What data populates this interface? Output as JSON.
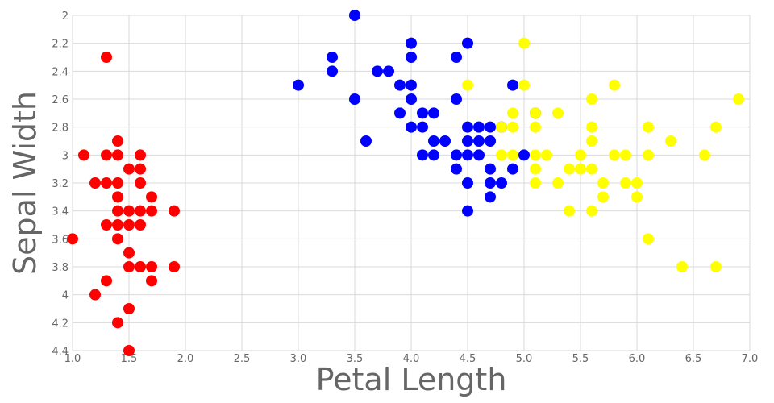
{
  "chart_data": {
    "type": "scatter",
    "title": "",
    "xlabel": "Petal Length",
    "ylabel": "Sepal Width",
    "xlim": [
      1.0,
      7.0
    ],
    "ylim": [
      2,
      4.4
    ],
    "y_inverted": true,
    "grid": true,
    "legend": "none",
    "xticks": [
      "1.0",
      "1.5",
      "2.0",
      "2.5",
      "3.0",
      "3.5",
      "4.0",
      "4.5",
      "5.0",
      "5.5",
      "6.0",
      "6.5",
      "7.0"
    ],
    "yticks": [
      "2",
      "2.2",
      "2.4",
      "2.6",
      "2.8",
      "3",
      "3.2",
      "3.4",
      "3.6",
      "3.8",
      "4",
      "4.2",
      "4.4"
    ],
    "series": [
      {
        "color": "#ff0000",
        "points": [
          [
            1.0,
            3.6
          ],
          [
            1.1,
            3.0
          ],
          [
            1.2,
            3.2
          ],
          [
            1.2,
            4.0
          ],
          [
            1.3,
            2.3
          ],
          [
            1.3,
            3.0
          ],
          [
            1.3,
            3.2
          ],
          [
            1.3,
            3.5
          ],
          [
            1.3,
            3.9
          ],
          [
            1.4,
            2.9
          ],
          [
            1.4,
            3.0
          ],
          [
            1.4,
            3.2
          ],
          [
            1.4,
            3.3
          ],
          [
            1.4,
            3.4
          ],
          [
            1.4,
            3.5
          ],
          [
            1.4,
            3.6
          ],
          [
            1.4,
            4.2
          ],
          [
            1.5,
            3.1
          ],
          [
            1.5,
            3.4
          ],
          [
            1.5,
            3.5
          ],
          [
            1.5,
            3.7
          ],
          [
            1.5,
            3.8
          ],
          [
            1.5,
            4.1
          ],
          [
            1.5,
            4.4
          ],
          [
            1.6,
            3.0
          ],
          [
            1.6,
            3.1
          ],
          [
            1.6,
            3.2
          ],
          [
            1.6,
            3.4
          ],
          [
            1.6,
            3.5
          ],
          [
            1.6,
            3.8
          ],
          [
            1.7,
            3.3
          ],
          [
            1.7,
            3.4
          ],
          [
            1.7,
            3.8
          ],
          [
            1.7,
            3.9
          ],
          [
            1.9,
            3.4
          ],
          [
            1.9,
            3.8
          ]
        ]
      },
      {
        "color": "#0000ff",
        "points": [
          [
            3.0,
            2.5
          ],
          [
            3.3,
            2.3
          ],
          [
            3.3,
            2.4
          ],
          [
            3.5,
            2.0
          ],
          [
            3.5,
            2.6
          ],
          [
            3.6,
            2.9
          ],
          [
            3.7,
            2.4
          ],
          [
            3.8,
            2.4
          ],
          [
            3.9,
            2.5
          ],
          [
            3.9,
            2.7
          ],
          [
            4.0,
            2.2
          ],
          [
            4.0,
            2.3
          ],
          [
            4.0,
            2.5
          ],
          [
            4.0,
            2.6
          ],
          [
            4.0,
            2.8
          ],
          [
            4.1,
            2.7
          ],
          [
            4.1,
            2.8
          ],
          [
            4.1,
            3.0
          ],
          [
            4.2,
            2.7
          ],
          [
            4.2,
            2.9
          ],
          [
            4.2,
            3.0
          ],
          [
            4.3,
            2.9
          ],
          [
            4.4,
            2.3
          ],
          [
            4.4,
            2.6
          ],
          [
            4.4,
            3.0
          ],
          [
            4.4,
            3.1
          ],
          [
            4.5,
            2.2
          ],
          [
            4.5,
            2.8
          ],
          [
            4.5,
            2.9
          ],
          [
            4.5,
            3.0
          ],
          [
            4.5,
            3.2
          ],
          [
            4.5,
            3.4
          ],
          [
            4.6,
            2.8
          ],
          [
            4.6,
            2.9
          ],
          [
            4.6,
            3.0
          ],
          [
            4.7,
            2.8
          ],
          [
            4.7,
            2.9
          ],
          [
            4.7,
            3.1
          ],
          [
            4.7,
            3.2
          ],
          [
            4.7,
            3.3
          ],
          [
            4.8,
            2.8
          ],
          [
            4.8,
            3.2
          ],
          [
            4.9,
            2.5
          ],
          [
            4.9,
            3.1
          ],
          [
            5.0,
            3.0
          ],
          [
            5.1,
            2.7
          ]
        ]
      },
      {
        "color": "#ffff00",
        "points": [
          [
            4.5,
            2.5
          ],
          [
            4.8,
            2.8
          ],
          [
            4.8,
            3.0
          ],
          [
            4.9,
            2.7
          ],
          [
            4.9,
            2.8
          ],
          [
            4.9,
            3.0
          ],
          [
            5.0,
            2.2
          ],
          [
            5.0,
            2.5
          ],
          [
            5.1,
            2.7
          ],
          [
            5.1,
            2.8
          ],
          [
            5.1,
            3.0
          ],
          [
            5.1,
            3.1
          ],
          [
            5.1,
            3.2
          ],
          [
            5.2,
            3.0
          ],
          [
            5.3,
            2.7
          ],
          [
            5.3,
            3.2
          ],
          [
            5.4,
            3.1
          ],
          [
            5.4,
            3.4
          ],
          [
            5.5,
            3.0
          ],
          [
            5.5,
            3.1
          ],
          [
            5.6,
            2.6
          ],
          [
            5.6,
            2.8
          ],
          [
            5.6,
            2.9
          ],
          [
            5.6,
            3.1
          ],
          [
            5.6,
            3.4
          ],
          [
            5.7,
            3.2
          ],
          [
            5.7,
            3.3
          ],
          [
            5.8,
            2.5
          ],
          [
            5.8,
            3.0
          ],
          [
            5.9,
            3.0
          ],
          [
            5.9,
            3.2
          ],
          [
            6.0,
            3.2
          ],
          [
            6.0,
            3.3
          ],
          [
            6.1,
            2.8
          ],
          [
            6.1,
            3.0
          ],
          [
            6.1,
            3.6
          ],
          [
            6.3,
            2.9
          ],
          [
            6.4,
            3.8
          ],
          [
            6.6,
            3.0
          ],
          [
            6.7,
            2.8
          ],
          [
            6.7,
            3.8
          ],
          [
            6.9,
            2.6
          ]
        ]
      }
    ]
  }
}
